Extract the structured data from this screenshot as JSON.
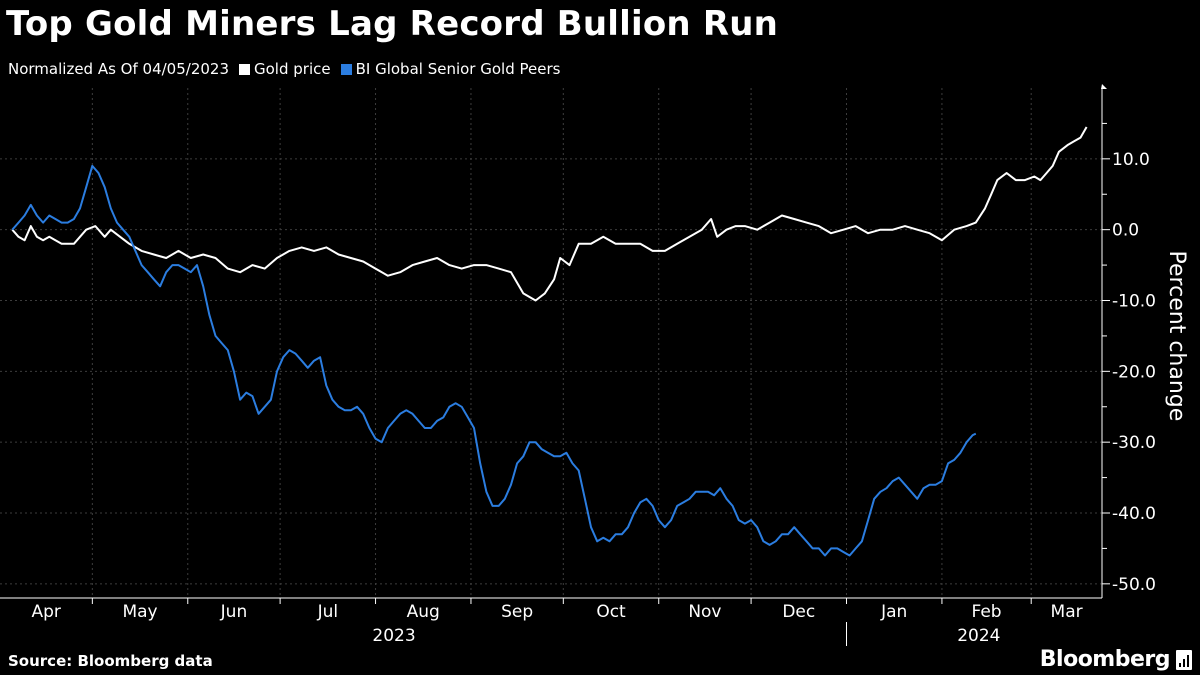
{
  "title": "Top Gold Miners Lag Record Bullion Run",
  "subtitle": "Normalized As Of 04/05/2023",
  "source": "Source: Bloomberg data",
  "brand": "Bloomberg",
  "colors": {
    "background": "#000000",
    "gold": "#ffffff",
    "miners": "#2b7de0",
    "grid": "#444444"
  },
  "chart_data": {
    "type": "line",
    "ylabel": "Percent change",
    "ylim": [
      -52,
      20
    ],
    "y_ticks": [
      10,
      0,
      -10,
      -20,
      -30,
      -40,
      -50
    ],
    "y_tick_labels": [
      "10.0",
      "0.0",
      "-10.0",
      "-20.0",
      "-30.0",
      "-40.0",
      "-50.0"
    ],
    "x_range_days": [
      -4,
      354
    ],
    "x_months": [
      "Apr",
      "May",
      "Jun",
      "Jul",
      "Aug",
      "Sep",
      "Oct",
      "Nov",
      "Dec",
      "Jan",
      "Feb",
      "Mar"
    ],
    "x_month_start_days": [
      -4,
      26,
      57,
      87,
      118,
      149,
      179,
      210,
      240,
      271,
      302,
      331
    ],
    "x_years": [
      {
        "label": "2023",
        "day": 124
      },
      {
        "label": "2024",
        "day": 314
      }
    ],
    "year_divider_day": 271,
    "legend_position": "top-left",
    "series": [
      {
        "name": "Gold price",
        "color": "#ffffff",
        "points": [
          [
            0,
            0
          ],
          [
            2,
            -1
          ],
          [
            4,
            -1.5
          ],
          [
            6,
            0.5
          ],
          [
            8,
            -1
          ],
          [
            10,
            -1.5
          ],
          [
            12,
            -1
          ],
          [
            14,
            -1.5
          ],
          [
            16,
            -2
          ],
          [
            20,
            -2
          ],
          [
            22,
            -1
          ],
          [
            24,
            0
          ],
          [
            27,
            0.5
          ],
          [
            30,
            -1
          ],
          [
            32,
            0
          ],
          [
            35,
            -1
          ],
          [
            38,
            -2
          ],
          [
            42,
            -3
          ],
          [
            46,
            -3.5
          ],
          [
            50,
            -4
          ],
          [
            54,
            -3
          ],
          [
            58,
            -4
          ],
          [
            62,
            -3.5
          ],
          [
            66,
            -4
          ],
          [
            70,
            -5.5
          ],
          [
            74,
            -6
          ],
          [
            78,
            -5
          ],
          [
            82,
            -5.5
          ],
          [
            86,
            -4
          ],
          [
            90,
            -3
          ],
          [
            94,
            -2.5
          ],
          [
            98,
            -3
          ],
          [
            102,
            -2.5
          ],
          [
            106,
            -3.5
          ],
          [
            110,
            -4
          ],
          [
            114,
            -4.5
          ],
          [
            118,
            -5.5
          ],
          [
            122,
            -6.5
          ],
          [
            126,
            -6
          ],
          [
            130,
            -5
          ],
          [
            134,
            -4.5
          ],
          [
            138,
            -4
          ],
          [
            142,
            -5
          ],
          [
            146,
            -5.5
          ],
          [
            150,
            -5
          ],
          [
            154,
            -5
          ],
          [
            158,
            -5.5
          ],
          [
            162,
            -6
          ],
          [
            166,
            -9
          ],
          [
            170,
            -10
          ],
          [
            173,
            -9
          ],
          [
            176,
            -7
          ],
          [
            178,
            -4
          ],
          [
            181,
            -5
          ],
          [
            184,
            -2
          ],
          [
            188,
            -2
          ],
          [
            192,
            -1
          ],
          [
            196,
            -2
          ],
          [
            200,
            -2
          ],
          [
            204,
            -2
          ],
          [
            208,
            -3
          ],
          [
            212,
            -3
          ],
          [
            216,
            -2
          ],
          [
            220,
            -1
          ],
          [
            224,
            0
          ],
          [
            227,
            1.5
          ],
          [
            229,
            -1
          ],
          [
            232,
            0
          ],
          [
            235,
            0.5
          ],
          [
            238,
            0.5
          ],
          [
            242,
            0
          ],
          [
            246,
            1
          ],
          [
            250,
            2
          ],
          [
            254,
            1.5
          ],
          [
            258,
            1
          ],
          [
            262,
            0.5
          ],
          [
            266,
            -0.5
          ],
          [
            270,
            0
          ],
          [
            274,
            0.5
          ],
          [
            278,
            -0.5
          ],
          [
            282,
            0
          ],
          [
            286,
            0
          ],
          [
            290,
            0.5
          ],
          [
            294,
            0
          ],
          [
            298,
            -0.5
          ],
          [
            302,
            -1.5
          ],
          [
            306,
            0
          ],
          [
            310,
            0.5
          ],
          [
            313,
            1
          ],
          [
            316,
            3
          ],
          [
            318,
            5
          ],
          [
            320,
            7
          ],
          [
            323,
            8
          ],
          [
            326,
            7
          ],
          [
            329,
            7
          ],
          [
            332,
            7.5
          ],
          [
            334,
            7
          ],
          [
            336,
            8
          ],
          [
            338,
            9
          ],
          [
            340,
            11
          ],
          [
            343,
            12
          ],
          [
            345,
            12.5
          ],
          [
            347,
            13
          ],
          [
            349,
            14.5
          ]
        ]
      },
      {
        "name": "BI Global Senior Gold Peers",
        "color": "#2b7de0",
        "points": [
          [
            0,
            0
          ],
          [
            2,
            1
          ],
          [
            4,
            2
          ],
          [
            6,
            3.5
          ],
          [
            8,
            2
          ],
          [
            10,
            1
          ],
          [
            12,
            2
          ],
          [
            14,
            1.5
          ],
          [
            16,
            1
          ],
          [
            18,
            1
          ],
          [
            20,
            1.5
          ],
          [
            22,
            3
          ],
          [
            24,
            6
          ],
          [
            26,
            9
          ],
          [
            28,
            8
          ],
          [
            30,
            6
          ],
          [
            32,
            3
          ],
          [
            34,
            1
          ],
          [
            36,
            0
          ],
          [
            38,
            -1
          ],
          [
            40,
            -3
          ],
          [
            42,
            -5
          ],
          [
            44,
            -6
          ],
          [
            46,
            -7
          ],
          [
            48,
            -8
          ],
          [
            50,
            -6
          ],
          [
            52,
            -5
          ],
          [
            54,
            -5
          ],
          [
            56,
            -5.5
          ],
          [
            58,
            -6
          ],
          [
            60,
            -5
          ],
          [
            62,
            -8
          ],
          [
            64,
            -12
          ],
          [
            66,
            -15
          ],
          [
            68,
            -16
          ],
          [
            70,
            -17
          ],
          [
            72,
            -20
          ],
          [
            74,
            -24
          ],
          [
            76,
            -23
          ],
          [
            78,
            -23.5
          ],
          [
            80,
            -26
          ],
          [
            82,
            -25
          ],
          [
            84,
            -24
          ],
          [
            86,
            -20
          ],
          [
            88,
            -18
          ],
          [
            90,
            -17
          ],
          [
            92,
            -17.5
          ],
          [
            94,
            -18.5
          ],
          [
            96,
            -19.5
          ],
          [
            98,
            -18.5
          ],
          [
            100,
            -18
          ],
          [
            102,
            -22
          ],
          [
            104,
            -24
          ],
          [
            106,
            -25
          ],
          [
            108,
            -25.5
          ],
          [
            110,
            -25.5
          ],
          [
            112,
            -25
          ],
          [
            114,
            -26
          ],
          [
            116,
            -28
          ],
          [
            118,
            -29.5
          ],
          [
            120,
            -30
          ],
          [
            122,
            -28
          ],
          [
            124,
            -27
          ],
          [
            126,
            -26
          ],
          [
            128,
            -25.5
          ],
          [
            130,
            -26
          ],
          [
            132,
            -27
          ],
          [
            134,
            -28
          ],
          [
            136,
            -28
          ],
          [
            138,
            -27
          ],
          [
            140,
            -26.5
          ],
          [
            142,
            -25
          ],
          [
            144,
            -24.5
          ],
          [
            146,
            -25
          ],
          [
            148,
            -26.5
          ],
          [
            150,
            -28
          ],
          [
            152,
            -33
          ],
          [
            154,
            -37
          ],
          [
            156,
            -39
          ],
          [
            158,
            -39
          ],
          [
            160,
            -38
          ],
          [
            162,
            -36
          ],
          [
            164,
            -33
          ],
          [
            166,
            -32
          ],
          [
            168,
            -30
          ],
          [
            170,
            -30
          ],
          [
            172,
            -31
          ],
          [
            174,
            -31.5
          ],
          [
            176,
            -32
          ],
          [
            178,
            -32
          ],
          [
            180,
            -31.5
          ],
          [
            182,
            -33
          ],
          [
            184,
            -34
          ],
          [
            186,
            -38
          ],
          [
            188,
            -42
          ],
          [
            190,
            -44
          ],
          [
            192,
            -43.5
          ],
          [
            194,
            -44
          ],
          [
            196,
            -43
          ],
          [
            198,
            -43
          ],
          [
            200,
            -42
          ],
          [
            202,
            -40
          ],
          [
            204,
            -38.5
          ],
          [
            206,
            -38
          ],
          [
            208,
            -39
          ],
          [
            210,
            -41
          ],
          [
            212,
            -42
          ],
          [
            214,
            -41
          ],
          [
            216,
            -39
          ],
          [
            218,
            -38.5
          ],
          [
            220,
            -38
          ],
          [
            222,
            -37
          ],
          [
            224,
            -37
          ],
          [
            226,
            -37
          ],
          [
            228,
            -37.5
          ],
          [
            230,
            -36.5
          ],
          [
            232,
            -38
          ],
          [
            234,
            -39
          ],
          [
            236,
            -41
          ],
          [
            238,
            -41.5
          ],
          [
            240,
            -41
          ],
          [
            242,
            -42
          ],
          [
            244,
            -44
          ],
          [
            246,
            -44.5
          ],
          [
            248,
            -44
          ],
          [
            250,
            -43
          ],
          [
            252,
            -43
          ],
          [
            254,
            -42
          ],
          [
            256,
            -43
          ],
          [
            258,
            -44
          ],
          [
            260,
            -45
          ],
          [
            262,
            -45
          ],
          [
            264,
            -46
          ],
          [
            266,
            -45
          ],
          [
            268,
            -45
          ],
          [
            270,
            -45.5
          ],
          [
            272,
            -46
          ],
          [
            274,
            -45
          ],
          [
            276,
            -44
          ],
          [
            278,
            -41
          ],
          [
            280,
            -38
          ],
          [
            282,
            -37
          ],
          [
            284,
            -36.5
          ],
          [
            286,
            -35.5
          ],
          [
            288,
            -35
          ],
          [
            290,
            -36
          ],
          [
            292,
            -37
          ],
          [
            294,
            -38
          ],
          [
            296,
            -36.5
          ],
          [
            298,
            -36
          ],
          [
            300,
            -36
          ],
          [
            302,
            -35.5
          ],
          [
            304,
            -33
          ],
          [
            306,
            -32.5
          ],
          [
            308,
            -31.5
          ],
          [
            310,
            -30
          ],
          [
            312,
            -29
          ],
          [
            313,
            -28.8
          ]
        ]
      }
    ]
  }
}
